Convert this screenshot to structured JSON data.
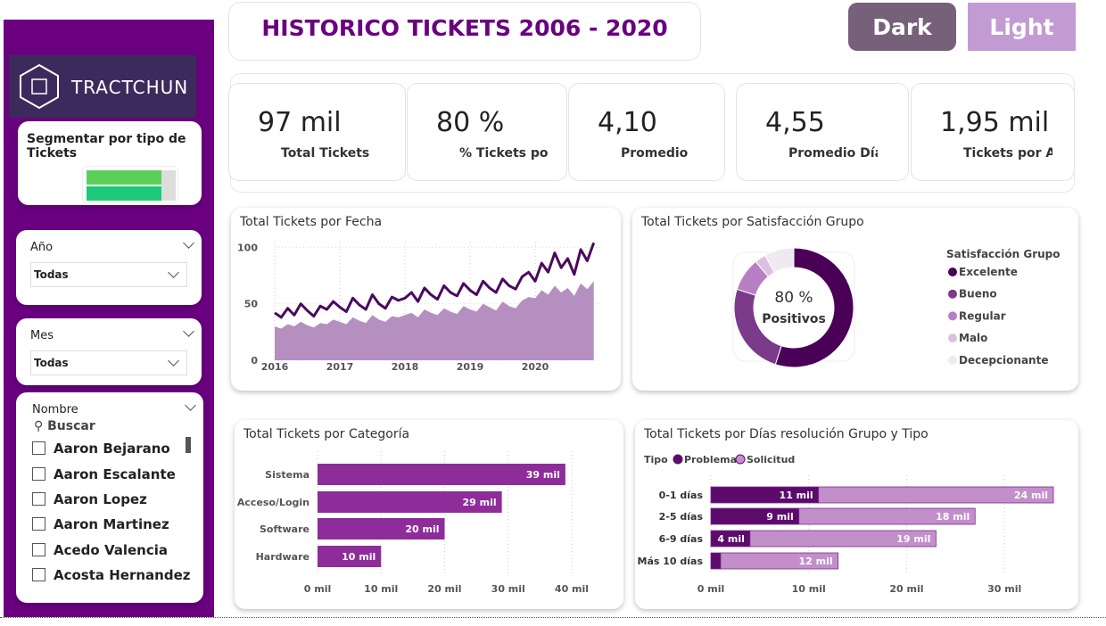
{
  "header": {
    "title": "HISTORICO TICKETS 2006 - 2020",
    "buttons": [
      "Dark",
      "Light"
    ]
  },
  "sidebar": {
    "logo": "TRACTCHUN",
    "segment_title": "Segmentar por tipo de Tickets",
    "filters": [
      {
        "label": "Año",
        "value": "Todas"
      },
      {
        "label": "Mes",
        "value": "Todas"
      }
    ],
    "name_filter": {
      "label": "Nombre",
      "search": "Buscar",
      "items": [
        "Aaron Bejarano",
        "Aaron Escalante",
        "Aaron Lopez",
        "Aaron Martinez",
        "Acedo Valencia",
        "Acosta Hernandez"
      ]
    }
  },
  "kpis": [
    {
      "value": "97 mil",
      "label": "Total Tickets"
    },
    {
      "value": "80 %",
      "label": "% Tickets po"
    },
    {
      "value": "4,10",
      "label": "Promedio"
    },
    {
      "value": "4,55",
      "label": "Promedio Días"
    },
    {
      "value": "1,95 mil",
      "label": "Tickets por A"
    }
  ],
  "chart_data": [
    {
      "type": "line",
      "title": "Total Tickets por Fecha",
      "x": [
        2016,
        2016.1,
        2016.2,
        2016.3,
        2016.4,
        2016.5,
        2016.6,
        2016.7,
        2016.8,
        2016.9,
        2017,
        2017.1,
        2017.2,
        2017.3,
        2017.4,
        2017.5,
        2017.6,
        2017.7,
        2017.8,
        2017.9,
        2018,
        2018.1,
        2018.2,
        2018.3,
        2018.4,
        2018.5,
        2018.6,
        2018.7,
        2018.8,
        2018.9,
        2019,
        2019.1,
        2019.2,
        2019.3,
        2019.4,
        2019.5,
        2019.6,
        2019.7,
        2019.8,
        2019.9,
        2020,
        2020.1,
        2020.2,
        2020.3,
        2020.4,
        2020.5,
        2020.6,
        2020.7,
        2020.8,
        2020.9
      ],
      "series": [
        {
          "color": "#4a0a5e",
          "values": [
            42,
            38,
            46,
            40,
            50,
            44,
            39,
            48,
            45,
            52,
            47,
            43,
            55,
            49,
            45,
            58,
            50,
            46,
            56,
            53,
            55,
            60,
            52,
            64,
            58,
            54,
            66,
            60,
            57,
            68,
            62,
            58,
            70,
            64,
            60,
            72,
            66,
            63,
            74,
            78,
            70,
            86,
            78,
            95,
            82,
            90,
            76,
            98,
            88,
            104
          ]
        },
        {
          "color": "#b48fc0",
          "area": true,
          "values": [
            30,
            28,
            32,
            30,
            34,
            31,
            29,
            33,
            32,
            36,
            34,
            32,
            38,
            35,
            33,
            40,
            36,
            34,
            39,
            38,
            40,
            42,
            38,
            45,
            42,
            40,
            46,
            43,
            41,
            48,
            45,
            43,
            50,
            47,
            44,
            52,
            48,
            46,
            53,
            56,
            55,
            62,
            58,
            66,
            60,
            64,
            57,
            68,
            63,
            70
          ]
        }
      ],
      "xlim": [
        2016,
        2021
      ],
      "xticks": [
        2016,
        2017,
        2018,
        2019,
        2020
      ],
      "ylim": [
        0,
        105
      ],
      "yticks": [
        0,
        50,
        100
      ],
      "grid": true
    },
    {
      "type": "pie",
      "donut": true,
      "title": "Total Tickets por Satisfacción Grupo",
      "legend_title": "Satisfacción Grupo",
      "categories": [
        "Excelente",
        "Bueno",
        "Regular",
        "Malo",
        "Decepcionante"
      ],
      "values": [
        55,
        25,
        9,
        3,
        8
      ],
      "colors": [
        "#4a0057",
        "#7b3a8a",
        "#b77fc3",
        "#dcc0e2",
        "#eeeaf0"
      ],
      "center_text": [
        "80 %",
        "Positivos"
      ]
    },
    {
      "type": "hbar",
      "title": "Total Tickets por Categoría",
      "categories": [
        "Sistema",
        "Acceso/Login",
        "Software",
        "Hardware"
      ],
      "values": [
        39,
        29,
        20,
        10
      ],
      "value_labels": [
        "39 mil",
        "29 mil",
        "20 mil",
        "10 mil"
      ],
      "color": "#8e2d9a",
      "xlim": [
        0,
        40
      ],
      "xticks": [
        {
          "value": 0,
          "label": "0 mil"
        },
        {
          "value": 10,
          "label": "10 mil"
        },
        {
          "value": 20,
          "label": "20 mil"
        },
        {
          "value": 30,
          "label": "30 mil"
        },
        {
          "value": 40,
          "label": "40 mil"
        }
      ],
      "grid": true
    },
    {
      "type": "stacked_hbar",
      "title": "Total Tickets por Días resolución Grupo y Tipo",
      "legend_title": "Tipo",
      "categories": [
        "0-1 días",
        "2-5 días",
        "6-9 días",
        "Más 10 días"
      ],
      "series": [
        {
          "name": "Problema",
          "color": "#5c0a6b",
          "values": [
            11,
            9,
            4,
            1
          ],
          "value_labels": [
            "11 mil",
            "9 mil",
            "4 mil",
            null
          ]
        },
        {
          "name": "Solicitud",
          "color": "#c38fcb",
          "values": [
            24,
            18,
            19,
            12
          ],
          "value_labels": [
            "24 mil",
            "18 mil",
            "19 mil",
            "12 mil"
          ]
        }
      ],
      "xlim": [
        0,
        36
      ],
      "xticks": [
        {
          "value": 0,
          "label": "0 mil"
        },
        {
          "value": 10,
          "label": "10 mil"
        },
        {
          "value": 20,
          "label": "20 mil"
        },
        {
          "value": 30,
          "label": "30 mil"
        }
      ],
      "grid": true
    }
  ]
}
